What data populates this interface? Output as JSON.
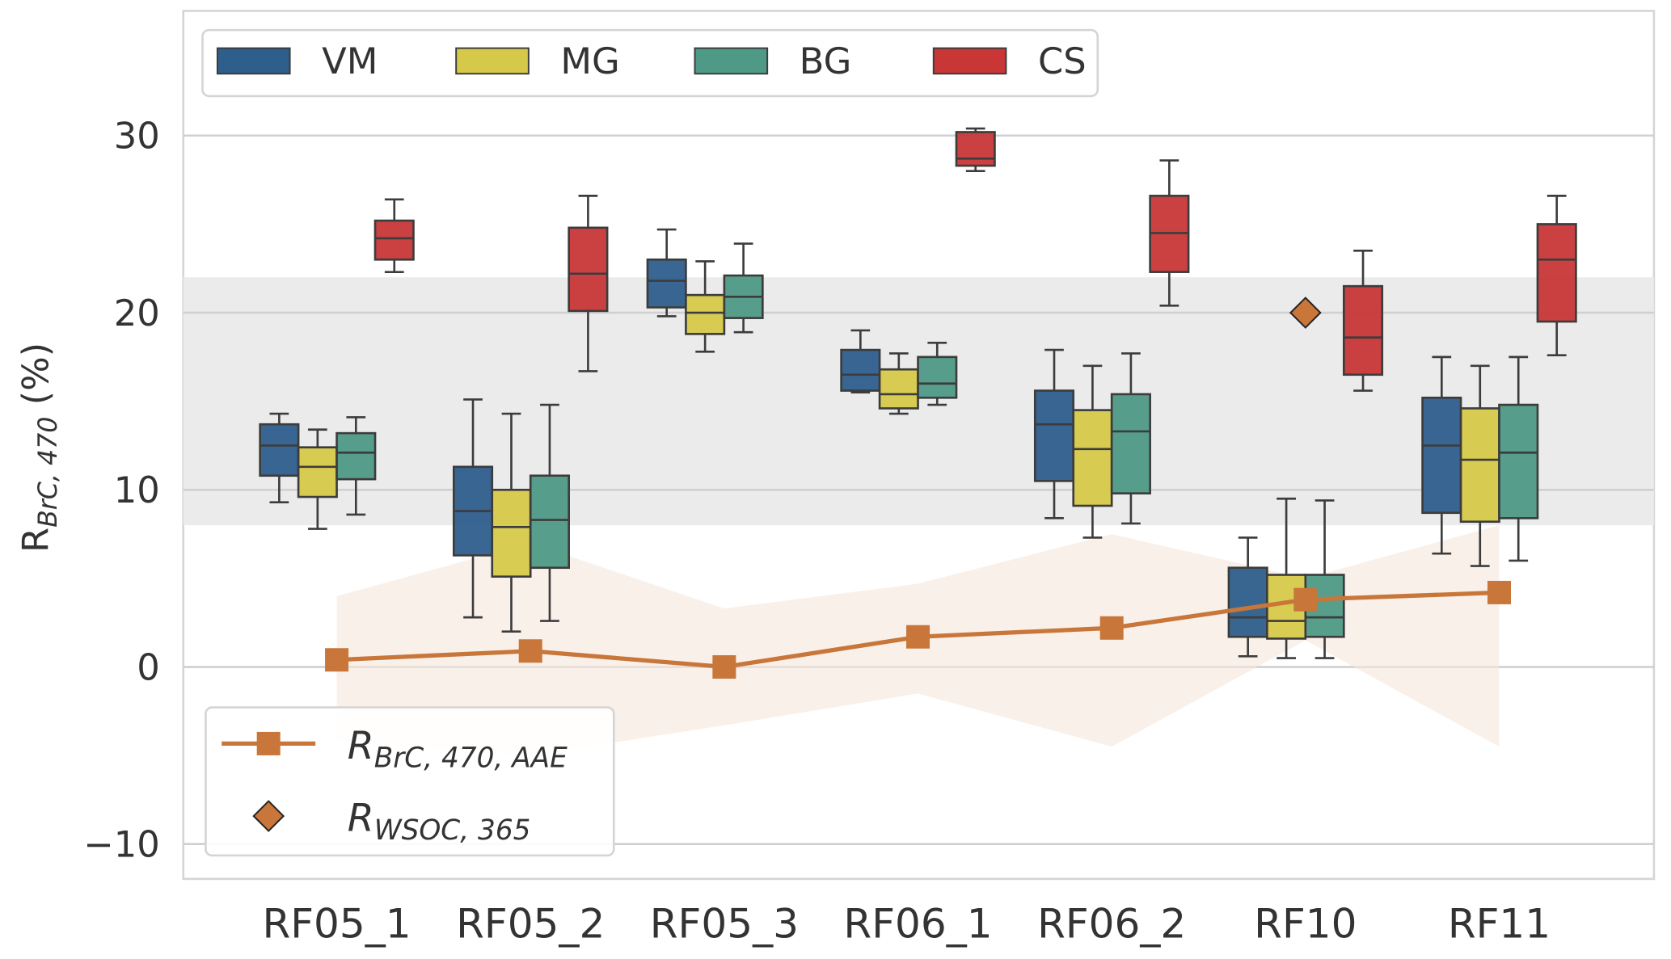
{
  "chart_data": {
    "type": "box",
    "ylabel": "R_BrC,470 (%)",
    "ylim": [
      -12,
      37
    ],
    "yticks": [
      -10,
      0,
      10,
      20,
      30
    ],
    "reference_band": [
      8,
      22
    ],
    "categories": [
      "RF05_1",
      "RF05_2",
      "RF05_3",
      "RF06_1",
      "RF06_2",
      "RF10",
      "RF11"
    ],
    "series": [
      {
        "name": "VM",
        "color": "#2e5e8c",
        "boxes": [
          [
            9.3,
            10.8,
            12.5,
            13.7,
            14.3
          ],
          [
            2.8,
            6.3,
            8.8,
            11.3,
            15.1
          ],
          [
            19.8,
            20.3,
            21.8,
            23.0,
            24.7
          ],
          [
            15.5,
            15.6,
            16.5,
            17.9,
            19.0
          ],
          [
            8.4,
            10.5,
            13.7,
            15.6,
            17.9
          ],
          [
            0.6,
            1.7,
            2.8,
            5.6,
            7.3
          ],
          [
            6.4,
            8.7,
            12.5,
            15.2,
            17.5
          ]
        ]
      },
      {
        "name": "MG",
        "color": "#d6c94a",
        "boxes": [
          [
            7.8,
            9.6,
            11.3,
            12.4,
            13.4
          ],
          [
            2.0,
            5.1,
            7.9,
            10.0,
            14.3
          ],
          [
            17.8,
            18.8,
            20.0,
            21.0,
            22.9
          ],
          [
            14.3,
            14.6,
            15.4,
            16.8,
            17.7
          ],
          [
            7.3,
            9.1,
            12.3,
            14.5,
            17.0
          ],
          [
            0.5,
            1.6,
            2.6,
            5.2,
            9.5
          ],
          [
            5.7,
            8.2,
            11.7,
            14.6,
            17.0
          ]
        ]
      },
      {
        "name": "BG",
        "color": "#4e9a86",
        "boxes": [
          [
            8.6,
            10.6,
            12.1,
            13.2,
            14.1
          ],
          [
            2.6,
            5.6,
            8.3,
            10.8,
            14.8
          ],
          [
            18.9,
            19.7,
            20.9,
            22.1,
            23.9
          ],
          [
            14.8,
            15.2,
            16.0,
            17.5,
            18.3
          ],
          [
            8.1,
            9.8,
            13.3,
            15.4,
            17.7
          ],
          [
            0.5,
            1.7,
            2.8,
            5.2,
            9.4
          ],
          [
            6.0,
            8.4,
            12.1,
            14.8,
            17.5
          ]
        ]
      },
      {
        "name": "CS",
        "color": "#c83636",
        "boxes": [
          [
            22.3,
            23.0,
            24.2,
            25.2,
            26.4
          ],
          [
            16.7,
            20.1,
            22.2,
            24.8,
            26.6
          ],
          null,
          [
            28.0,
            28.3,
            28.7,
            30.2,
            30.4
          ],
          [
            20.4,
            22.3,
            24.5,
            26.6,
            28.6
          ],
          [
            15.6,
            16.5,
            18.6,
            21.5,
            23.5
          ],
          [
            17.6,
            19.5,
            23.0,
            25.0,
            26.6
          ]
        ]
      }
    ],
    "aae": {
      "label": "R",
      "sub": "BrC, 470, AAE",
      "color": "#c8763a",
      "values": [
        0.4,
        0.9,
        0.0,
        1.7,
        2.2,
        3.8,
        4.2
      ],
      "upper": [
        4.0,
        7.0,
        3.3,
        4.7,
        7.5,
        5.0,
        8.0
      ],
      "lower": [
        -4.2,
        -5.0,
        -3.3,
        -1.5,
        -4.5,
        1.5,
        -4.5
      ]
    },
    "wsoc": {
      "label": "R",
      "sub": "WSOC, 365",
      "color": "#c8763a",
      "points": [
        {
          "category": "RF10",
          "value": 20.0
        }
      ]
    }
  }
}
